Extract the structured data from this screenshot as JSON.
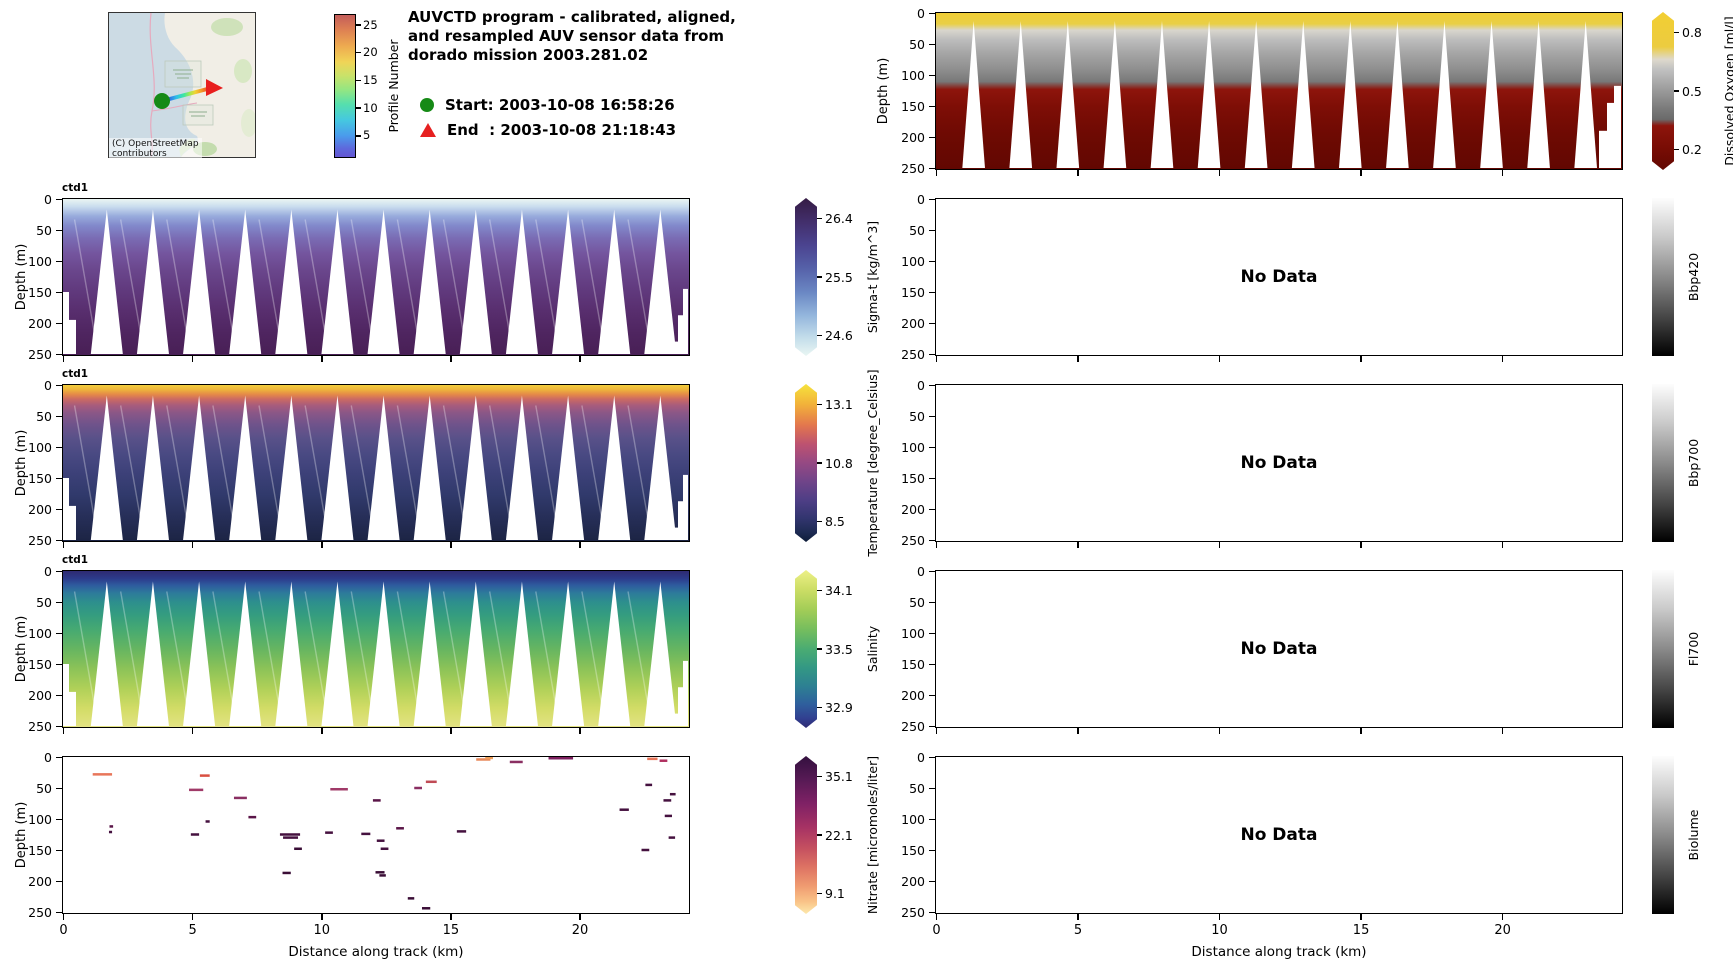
{
  "header": {
    "title_lines": [
      "AUVCTD program - calibrated, aligned,",
      "and resampled AUV sensor data from",
      "dorado mission 2003.281.02"
    ],
    "start_label": "Start: 2003-10-08 16:58:26",
    "end_label": "End  : 2003-10-08 21:18:43",
    "map": {
      "attribution_line1": "(C) OpenStreetMap",
      "attribution_line2": "contributors",
      "start_marker_color": "#168a16",
      "end_marker_color": "#e81e1e"
    },
    "profile_colorbar": {
      "label": "Profile Number",
      "ticks": [
        25,
        20,
        15,
        10,
        5
      ],
      "tick_pos": [
        0.077,
        0.269,
        0.462,
        0.654,
        0.846
      ],
      "range": [
        1,
        27
      ],
      "gradient": [
        [
          "#c35d5a",
          0
        ],
        [
          "#dd7f53",
          10
        ],
        [
          "#eeab50",
          22
        ],
        [
          "#f0d457",
          33
        ],
        [
          "#c8e26a",
          43
        ],
        [
          "#92e683",
          53
        ],
        [
          "#55dfae",
          63
        ],
        [
          "#45c8e0",
          74
        ],
        [
          "#4a9bec",
          85
        ],
        [
          "#5e68dc",
          94
        ],
        [
          "#6356d2",
          100
        ]
      ]
    }
  },
  "axes": {
    "depth_label": "Depth (m)",
    "depth_ticks": [
      0,
      50,
      100,
      150,
      200,
      250
    ],
    "x_label": "Distance along track (km)",
    "x_ticks": [
      0,
      5,
      10,
      15,
      20
    ],
    "x_range_km": [
      0,
      24.2
    ],
    "depth_range_m": [
      0,
      250
    ]
  },
  "chart_data": [
    {
      "id": "dissolved-oxygen",
      "type": "section",
      "col": "right",
      "row": -1,
      "variable": "Dissolved Oxygen",
      "units": "ml/l",
      "colorbar": {
        "label": "Dissolved Oxygen [ml/l]",
        "extend": true,
        "ticks": [
          {
            "label": "0.8",
            "pos": 0.085
          },
          {
            "label": "0.5",
            "pos": 0.5
          },
          {
            "label": "0.2",
            "pos": 0.915
          }
        ],
        "gradient": [
          [
            "#f2ce32",
            0
          ],
          [
            "#eccc40",
            22
          ],
          [
            "#ded9cc",
            30
          ],
          [
            "#c2c2c2",
            36
          ],
          [
            "#9f9f9f",
            48
          ],
          [
            "#787878",
            62
          ],
          [
            "#6a6a6a",
            68
          ],
          [
            "#8e150c",
            72
          ],
          [
            "#7a0d05",
            85
          ],
          [
            "#620701",
            100
          ]
        ]
      },
      "gradient": [
        [
          "#f0cd35",
          0
        ],
        [
          "#e9cf45",
          7
        ],
        [
          "#d9d6cd",
          11
        ],
        [
          "#bdbdbd",
          17
        ],
        [
          "#a5a5a5",
          26
        ],
        [
          "#8f8f8f",
          36
        ],
        [
          "#787878",
          44
        ],
        [
          "#8e150c",
          49
        ],
        [
          "#7e0e06",
          60
        ],
        [
          "#6e0a03",
          78
        ],
        [
          "#620701",
          100
        ]
      ],
      "gaps": {
        "count": 14,
        "apex_depth_m": 13,
        "half_width_km": 0.4,
        "phase": 0.8
      },
      "edges": {
        "left_steps": false,
        "right_steps": true
      },
      "streaks": false
    },
    {
      "id": "sigma-t",
      "type": "section",
      "col": "left",
      "row": 0,
      "tag": "ctd1",
      "variable": "Sigma-t",
      "units": "kg/m^3",
      "colorbar": {
        "label": "Sigma-t [kg/m^3]",
        "extend": true,
        "ticks": [
          {
            "label": "26.4",
            "pos": 0.085
          },
          {
            "label": "25.5",
            "pos": 0.5
          },
          {
            "label": "24.6",
            "pos": 0.915
          }
        ],
        "gradient": [
          [
            "#351b44",
            0
          ],
          [
            "#43306e",
            16
          ],
          [
            "#4b4490",
            30
          ],
          [
            "#5560a8",
            44
          ],
          [
            "#6b88c4",
            60
          ],
          [
            "#93b5dc",
            74
          ],
          [
            "#c2dcea",
            88
          ],
          [
            "#e9f6f3",
            100
          ]
        ]
      },
      "gradient": [
        [
          "#eaf5f3",
          0
        ],
        [
          "#c9dcee",
          5
        ],
        [
          "#98abdc",
          11
        ],
        [
          "#8289cb",
          17
        ],
        [
          "#7a6cb4",
          25
        ],
        [
          "#74559e",
          35
        ],
        [
          "#6a468c",
          46
        ],
        [
          "#613a7e",
          58
        ],
        [
          "#582e6e",
          72
        ],
        [
          "#4f2560",
          86
        ],
        [
          "#481f55",
          100
        ]
      ],
      "gaps": {
        "count": 13,
        "apex_depth_m": 17,
        "half_width_km": 0.62,
        "phase": 0.95
      },
      "edges": {
        "left_steps": true,
        "right_steps": true
      },
      "streaks": true
    },
    {
      "id": "temperature",
      "type": "section",
      "col": "left",
      "row": 1,
      "tag": "ctd1",
      "variable": "Temperature",
      "units": "degree_Celsius",
      "colorbar": {
        "label": "Temperature [degree_Celsius]",
        "extend": true,
        "ticks": [
          {
            "label": "13.1",
            "pos": 0.085
          },
          {
            "label": "10.8",
            "pos": 0.5
          },
          {
            "label": "8.5",
            "pos": 0.915
          }
        ],
        "gradient": [
          [
            "#f6e33c",
            0
          ],
          [
            "#f2b13a",
            13
          ],
          [
            "#e3774d",
            26
          ],
          [
            "#bd5270",
            38
          ],
          [
            "#954983",
            50
          ],
          [
            "#6f4489",
            62
          ],
          [
            "#4d3e85",
            74
          ],
          [
            "#32356f",
            85
          ],
          [
            "#1d2a52",
            94
          ],
          [
            "#0d1c38",
            100
          ]
        ]
      },
      "gradient": [
        [
          "#f3cf3d",
          0
        ],
        [
          "#eeb33c",
          3
        ],
        [
          "#e58a48",
          6
        ],
        [
          "#cc6a62",
          9
        ],
        [
          "#a85c7c",
          13
        ],
        [
          "#8a5787",
          18
        ],
        [
          "#70538b",
          25
        ],
        [
          "#595189",
          34
        ],
        [
          "#4a4a83",
          44
        ],
        [
          "#3d4179",
          56
        ],
        [
          "#313a6c",
          70
        ],
        [
          "#272f59",
          84
        ],
        [
          "#1c2444",
          100
        ]
      ],
      "gaps": {
        "count": 13,
        "apex_depth_m": 17,
        "half_width_km": 0.62,
        "phase": 0.95
      },
      "edges": {
        "left_steps": true,
        "right_steps": true
      },
      "streaks": true
    },
    {
      "id": "salinity",
      "type": "section",
      "col": "left",
      "row": 2,
      "tag": "ctd1",
      "variable": "Salinity",
      "units": "",
      "colorbar": {
        "label": "Salinity",
        "extend": true,
        "ticks": [
          {
            "label": "34.1",
            "pos": 0.085
          },
          {
            "label": "33.5",
            "pos": 0.5
          },
          {
            "label": "32.9",
            "pos": 0.915
          }
        ],
        "gradient": [
          [
            "#edf087",
            0
          ],
          [
            "#cdde66",
            12
          ],
          [
            "#a3cd57",
            25
          ],
          [
            "#74bd5e",
            38
          ],
          [
            "#4aac72",
            50
          ],
          [
            "#339884",
            62
          ],
          [
            "#2d7f93",
            74
          ],
          [
            "#2f5f9d",
            85
          ],
          [
            "#313f90",
            94
          ],
          [
            "#2e2a72",
            100
          ]
        ]
      },
      "gradient": [
        [
          "#2e2a72",
          0
        ],
        [
          "#2c3c8c",
          5
        ],
        [
          "#2e5a9e",
          9
        ],
        [
          "#2d7a9b",
          14
        ],
        [
          "#2d8f8d",
          20
        ],
        [
          "#349c80",
          28
        ],
        [
          "#47aa71",
          38
        ],
        [
          "#66b561",
          50
        ],
        [
          "#8ac258",
          62
        ],
        [
          "#afd058",
          75
        ],
        [
          "#d2dc66",
          88
        ],
        [
          "#e3e383",
          100
        ]
      ],
      "gaps": {
        "count": 13,
        "apex_depth_m": 17,
        "half_width_km": 0.62,
        "phase": 0.95
      },
      "edges": {
        "left_steps": true,
        "right_steps": true
      },
      "streaks": true
    },
    {
      "id": "nitrate",
      "type": "dashes",
      "col": "left",
      "row": 3,
      "variable": "Nitrate",
      "units": "micromoles/liter",
      "colorbar": {
        "label": "Nitrate [micromoles/liter]",
        "extend": true,
        "ticks": [
          {
            "label": "35.1",
            "pos": 0.085
          },
          {
            "label": "22.1",
            "pos": 0.5
          },
          {
            "label": "9.1",
            "pos": 0.915
          }
        ],
        "gradient": [
          [
            "#33103f",
            0
          ],
          [
            "#571a55",
            15
          ],
          [
            "#7f2165",
            30
          ],
          [
            "#a63264",
            45
          ],
          [
            "#c44f60",
            58
          ],
          [
            "#dd7263",
            70
          ],
          [
            "#ef9a70",
            82
          ],
          [
            "#f9c287",
            92
          ],
          [
            "#fde9ac",
            100
          ]
        ]
      },
      "dashes": [
        [
          1.15,
          28,
          0.75,
          "#e8765a"
        ],
        [
          1.8,
          112,
          0.14,
          "#5a1548"
        ],
        [
          1.78,
          121,
          0.12,
          "#45113f"
        ],
        [
          4.88,
          53,
          0.55,
          "#a03a68"
        ],
        [
          5.3,
          30,
          0.38,
          "#d94f41"
        ],
        [
          4.95,
          125,
          0.32,
          "#45113f"
        ],
        [
          5.52,
          104,
          0.16,
          "#45113f"
        ],
        [
          6.62,
          66,
          0.5,
          "#8a2f62"
        ],
        [
          7.18,
          97,
          0.3,
          "#5a1548"
        ],
        [
          8.4,
          125,
          0.78,
          "#45113f"
        ],
        [
          8.52,
          130,
          0.58,
          "#45113f"
        ],
        [
          8.95,
          148,
          0.3,
          "#3a0d36"
        ],
        [
          8.5,
          187,
          0.32,
          "#3a0d36"
        ],
        [
          10.15,
          122,
          0.3,
          "#45113f"
        ],
        [
          10.35,
          52,
          0.68,
          "#a03a68"
        ],
        [
          11.55,
          124,
          0.35,
          "#45113f"
        ],
        [
          12.0,
          70,
          0.3,
          "#5a1548"
        ],
        [
          12.1,
          186,
          0.35,
          "#3a0d36"
        ],
        [
          12.3,
          148,
          0.3,
          "#45113f"
        ],
        [
          12.25,
          191,
          0.25,
          "#3a0d36"
        ],
        [
          12.15,
          135,
          0.3,
          "#45113f"
        ],
        [
          12.9,
          115,
          0.3,
          "#5a1548"
        ],
        [
          13.35,
          228,
          0.25,
          "#3a0d36"
        ],
        [
          13.9,
          244,
          0.32,
          "#3a0d36"
        ],
        [
          14.05,
          40,
          0.42,
          "#c04a55"
        ],
        [
          13.6,
          50,
          0.3,
          "#8a2f62"
        ],
        [
          15.25,
          120,
          0.36,
          "#45113f"
        ],
        [
          16.0,
          4,
          0.55,
          "#e8885a"
        ],
        [
          16.35,
          1.5,
          0.3,
          "#efa05a"
        ],
        [
          17.3,
          8,
          0.5,
          "#8a2f62"
        ],
        [
          18.8,
          2,
          0.95,
          "#7c1f5e"
        ],
        [
          21.55,
          85,
          0.36,
          "#45113f"
        ],
        [
          22.4,
          150,
          0.3,
          "#45113f"
        ],
        [
          22.55,
          45,
          0.26,
          "#45113f"
        ],
        [
          22.62,
          3,
          0.4,
          "#e8765a"
        ],
        [
          23.1,
          6,
          0.3,
          "#b03060"
        ],
        [
          23.25,
          70,
          0.3,
          "#45113f"
        ],
        [
          23.3,
          95,
          0.28,
          "#45113f"
        ],
        [
          23.5,
          60,
          0.22,
          "#45113f"
        ],
        [
          23.45,
          130,
          0.25,
          "#45113f"
        ]
      ]
    },
    {
      "id": "bbp420",
      "type": "empty",
      "col": "right",
      "row": 0,
      "no_data_label": "No Data",
      "colorbar": {
        "label": "Bbp420",
        "extend": false,
        "ticks": [],
        "gradient": [
          [
            "#fdfdfd",
            0
          ],
          [
            "#c9c9c9",
            25
          ],
          [
            "#8a8a8a",
            50
          ],
          [
            "#474747",
            75
          ],
          [
            "#000000",
            100
          ]
        ]
      }
    },
    {
      "id": "bbp700",
      "type": "empty",
      "col": "right",
      "row": 1,
      "no_data_label": "No Data",
      "colorbar": {
        "label": "Bbp700",
        "extend": false,
        "ticks": [],
        "gradient": [
          [
            "#fdfdfd",
            0
          ],
          [
            "#c9c9c9",
            25
          ],
          [
            "#8a8a8a",
            50
          ],
          [
            "#474747",
            75
          ],
          [
            "#000000",
            100
          ]
        ]
      }
    },
    {
      "id": "fl700",
      "type": "empty",
      "col": "right",
      "row": 2,
      "no_data_label": "No Data",
      "colorbar": {
        "label": "Fl700",
        "extend": false,
        "ticks": [],
        "gradient": [
          [
            "#fdfdfd",
            0
          ],
          [
            "#c9c9c9",
            25
          ],
          [
            "#8a8a8a",
            50
          ],
          [
            "#474747",
            75
          ],
          [
            "#000000",
            100
          ]
        ]
      }
    },
    {
      "id": "biolume",
      "type": "empty",
      "col": "right",
      "row": 3,
      "no_data_label": "No Data",
      "colorbar": {
        "label": "Biolume",
        "extend": false,
        "ticks": [],
        "gradient": [
          [
            "#fdfdfd",
            0
          ],
          [
            "#c9c9c9",
            25
          ],
          [
            "#8a8a8a",
            50
          ],
          [
            "#474747",
            75
          ],
          [
            "#000000",
            100
          ]
        ]
      }
    }
  ]
}
